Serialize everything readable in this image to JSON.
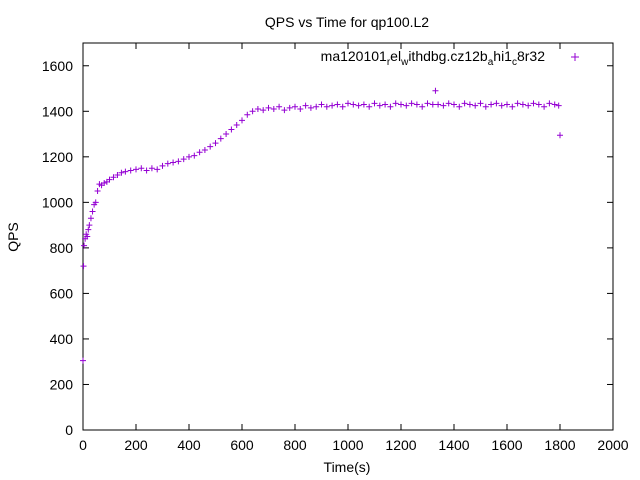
{
  "chart_data": {
    "type": "scatter",
    "title": "QPS vs Time for qp100.L2",
    "xlabel": "Time(s)",
    "ylabel": "QPS",
    "xlim": [
      0,
      2000
    ],
    "ylim": [
      0,
      1700
    ],
    "xticks": [
      0,
      200,
      400,
      600,
      800,
      1000,
      1200,
      1400,
      1600,
      1800,
      2000
    ],
    "yticks": [
      0,
      200,
      400,
      600,
      800,
      1000,
      1200,
      1400,
      1600
    ],
    "grid": false,
    "legend_position": "top-right",
    "series": [
      {
        "name": "ma120101_rel_withdbg.cz12b_ahi1_c8r32",
        "legend_parts": [
          {
            "text": "ma120101",
            "sub": false
          },
          {
            "text": "r",
            "sub": true
          },
          {
            "text": "el",
            "sub": false
          },
          {
            "text": "w",
            "sub": true
          },
          {
            "text": "ithdbg.cz12b",
            "sub": false
          },
          {
            "text": "a",
            "sub": true
          },
          {
            "text": "hi1",
            "sub": false
          },
          {
            "text": "c",
            "sub": true
          },
          {
            "text": "8r32",
            "sub": false
          }
        ],
        "color": "#9400d3",
        "marker": "plus",
        "x": [
          0,
          2,
          4,
          8,
          12,
          16,
          20,
          24,
          30,
          36,
          42,
          48,
          55,
          62,
          70,
          80,
          90,
          100,
          115,
          130,
          145,
          160,
          180,
          200,
          220,
          240,
          260,
          280,
          300,
          320,
          340,
          360,
          380,
          400,
          420,
          440,
          460,
          480,
          500,
          520,
          540,
          560,
          580,
          600,
          620,
          640,
          660,
          680,
          700,
          720,
          740,
          760,
          780,
          800,
          820,
          840,
          860,
          880,
          900,
          920,
          940,
          960,
          980,
          1000,
          1020,
          1040,
          1060,
          1080,
          1100,
          1120,
          1140,
          1160,
          1180,
          1200,
          1220,
          1240,
          1260,
          1280,
          1300,
          1320,
          1330,
          1340,
          1360,
          1380,
          1400,
          1420,
          1440,
          1460,
          1480,
          1500,
          1520,
          1540,
          1560,
          1580,
          1600,
          1620,
          1640,
          1660,
          1680,
          1700,
          1720,
          1740,
          1760,
          1780,
          1795,
          1800
        ],
        "y": [
          305,
          720,
          810,
          840,
          860,
          850,
          880,
          900,
          930,
          960,
          990,
          1000,
          1050,
          1080,
          1075,
          1085,
          1090,
          1100,
          1110,
          1120,
          1130,
          1135,
          1140,
          1145,
          1150,
          1140,
          1150,
          1145,
          1160,
          1170,
          1175,
          1180,
          1190,
          1200,
          1205,
          1220,
          1230,
          1245,
          1260,
          1280,
          1300,
          1320,
          1340,
          1360,
          1385,
          1400,
          1410,
          1405,
          1415,
          1410,
          1420,
          1405,
          1415,
          1420,
          1410,
          1425,
          1415,
          1420,
          1430,
          1420,
          1425,
          1430,
          1420,
          1435,
          1430,
          1425,
          1430,
          1420,
          1435,
          1425,
          1430,
          1420,
          1435,
          1430,
          1425,
          1435,
          1430,
          1420,
          1435,
          1430,
          1490,
          1430,
          1425,
          1435,
          1430,
          1420,
          1435,
          1430,
          1425,
          1435,
          1420,
          1430,
          1435,
          1425,
          1430,
          1420,
          1435,
          1430,
          1425,
          1435,
          1430,
          1420,
          1435,
          1430,
          1425,
          1295
        ]
      }
    ]
  }
}
